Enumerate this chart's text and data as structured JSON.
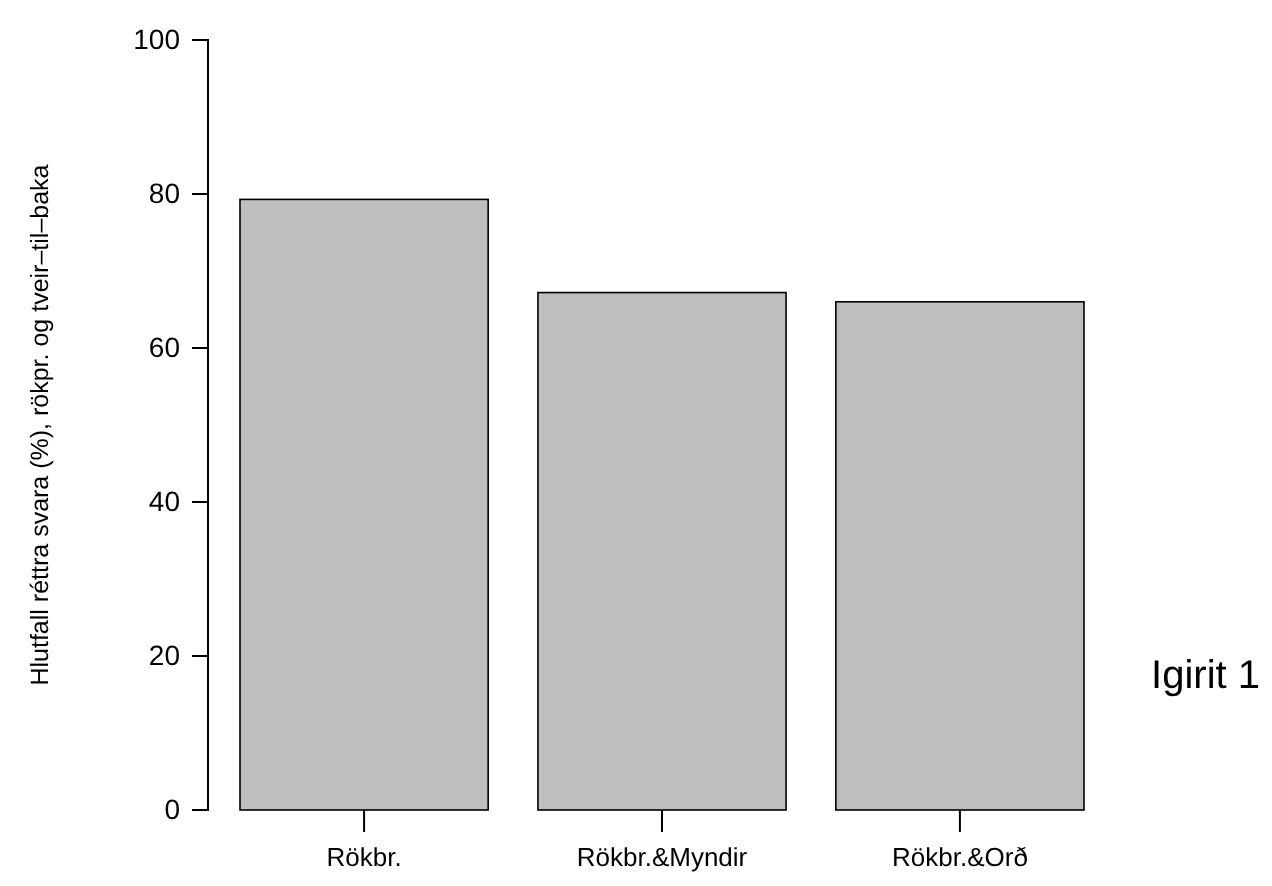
{
  "chart_data": {
    "type": "bar",
    "ylabel": "Hlutfall réttra svara (%), rökpr. og tveir–til–baka",
    "categories": [
      "Rökbr.",
      "Rökbr.&Myndir",
      "Rökbr.&Orð"
    ],
    "values": [
      79.3,
      67.2,
      66.0
    ],
    "color": "#bebebe",
    "ylim": [
      0,
      100
    ],
    "yticks": [
      0,
      20,
      40,
      60,
      80,
      100
    ],
    "grid": false,
    "annotations": [
      "Igirit 1"
    ]
  }
}
